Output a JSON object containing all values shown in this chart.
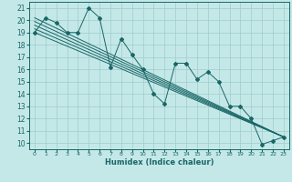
{
  "title": "",
  "xlabel": "Humidex (Indice chaleur)",
  "xlim": [
    -0.5,
    23.5
  ],
  "ylim": [
    9.5,
    21.5
  ],
  "xticks": [
    0,
    1,
    2,
    3,
    4,
    5,
    6,
    7,
    8,
    9,
    10,
    11,
    12,
    13,
    14,
    15,
    16,
    17,
    18,
    19,
    20,
    21,
    22,
    23
  ],
  "yticks": [
    10,
    11,
    12,
    13,
    14,
    15,
    16,
    17,
    18,
    19,
    20,
    21
  ],
  "bg_color": "#c4e8e8",
  "grid_color": "#a0cccc",
  "line_color": "#1a6666",
  "trend_lines": [
    [
      [
        0,
        19.0
      ],
      [
        23,
        10.5
      ]
    ],
    [
      [
        0,
        19.3
      ],
      [
        23,
        10.5
      ]
    ],
    [
      [
        0,
        19.6
      ],
      [
        23,
        10.5
      ]
    ],
    [
      [
        0,
        19.9
      ],
      [
        23,
        10.5
      ]
    ],
    [
      [
        0,
        20.2
      ],
      [
        23,
        10.5
      ]
    ]
  ],
  "jagged_x": [
    0,
    1,
    2,
    3,
    4,
    5,
    6,
    7,
    8,
    9,
    10,
    11,
    12,
    13,
    14,
    15,
    16,
    17,
    18,
    19,
    20,
    21,
    22,
    23
  ],
  "jagged_y": [
    19,
    20.2,
    19.8,
    19,
    19,
    21,
    20.2,
    16.2,
    18.5,
    17.2,
    16,
    14,
    13.2,
    16.5,
    16.5,
    15.2,
    15.8,
    15,
    13,
    13,
    12,
    9.9,
    10.2,
    10.5
  ]
}
